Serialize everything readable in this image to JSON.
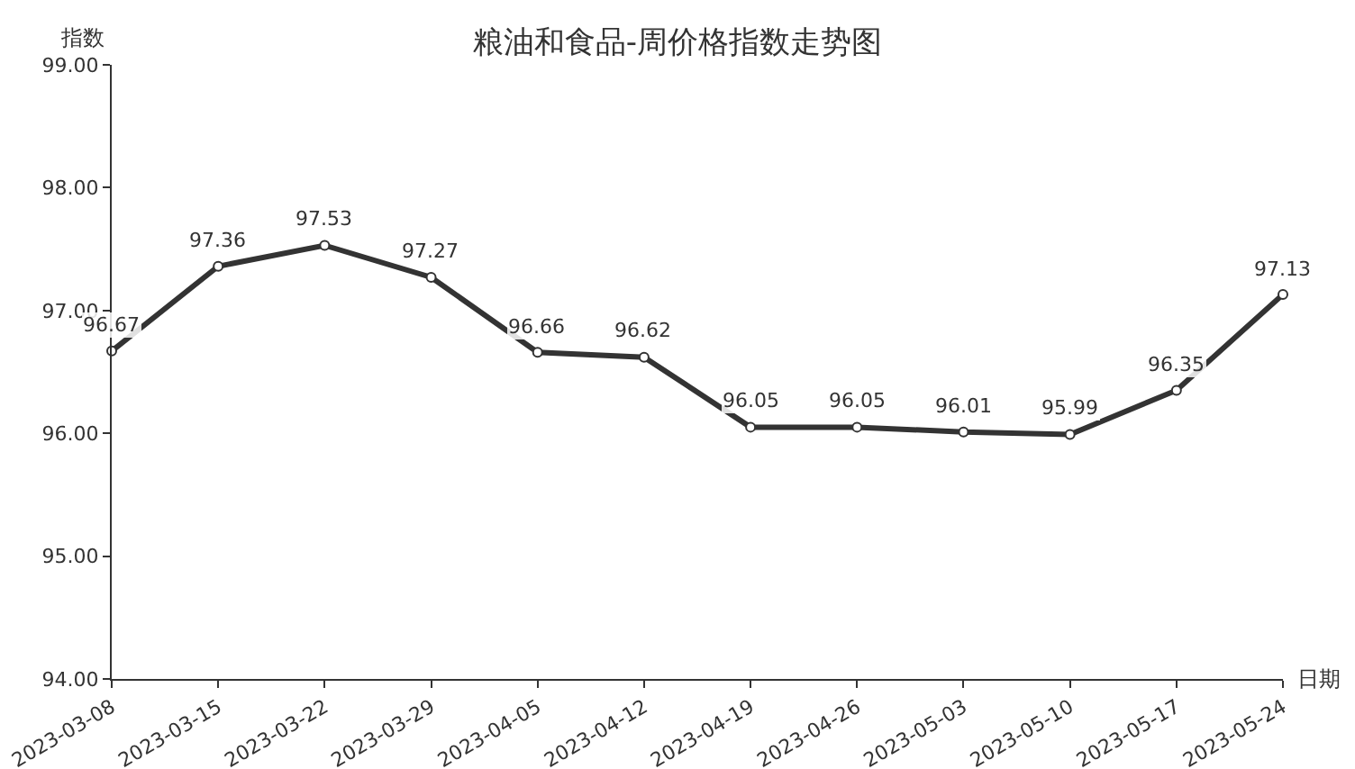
{
  "chart_data": {
    "type": "line",
    "title": "粮油和食品-周价格指数走势图",
    "xlabel": "日期",
    "ylabel": "指数",
    "categories": [
      "2023-03-08",
      "2023-03-15",
      "2023-03-22",
      "2023-03-29",
      "2023-04-05",
      "2023-04-12",
      "2023-04-19",
      "2023-04-26",
      "2023-05-03",
      "2023-05-10",
      "2023-05-17",
      "2023-05-24"
    ],
    "series": [
      {
        "color": "#333333",
        "values": [
          96.67,
          97.36,
          97.53,
          97.27,
          96.66,
          96.62,
          96.05,
          96.05,
          96.01,
          95.99,
          96.35,
          97.13
        ]
      }
    ],
    "ylim": [
      94,
      99
    ],
    "yticks": [
      {
        "value": 94,
        "label": "94.00"
      },
      {
        "value": 95,
        "label": "95.00"
      },
      {
        "value": 96,
        "label": "96.00"
      },
      {
        "value": 97,
        "label": "97.00"
      },
      {
        "value": 98,
        "label": "98.00"
      },
      {
        "value": 99,
        "label": "99.00"
      }
    ],
    "grid": false,
    "marker": "circle",
    "line_style": "solid",
    "data_labels": true
  }
}
